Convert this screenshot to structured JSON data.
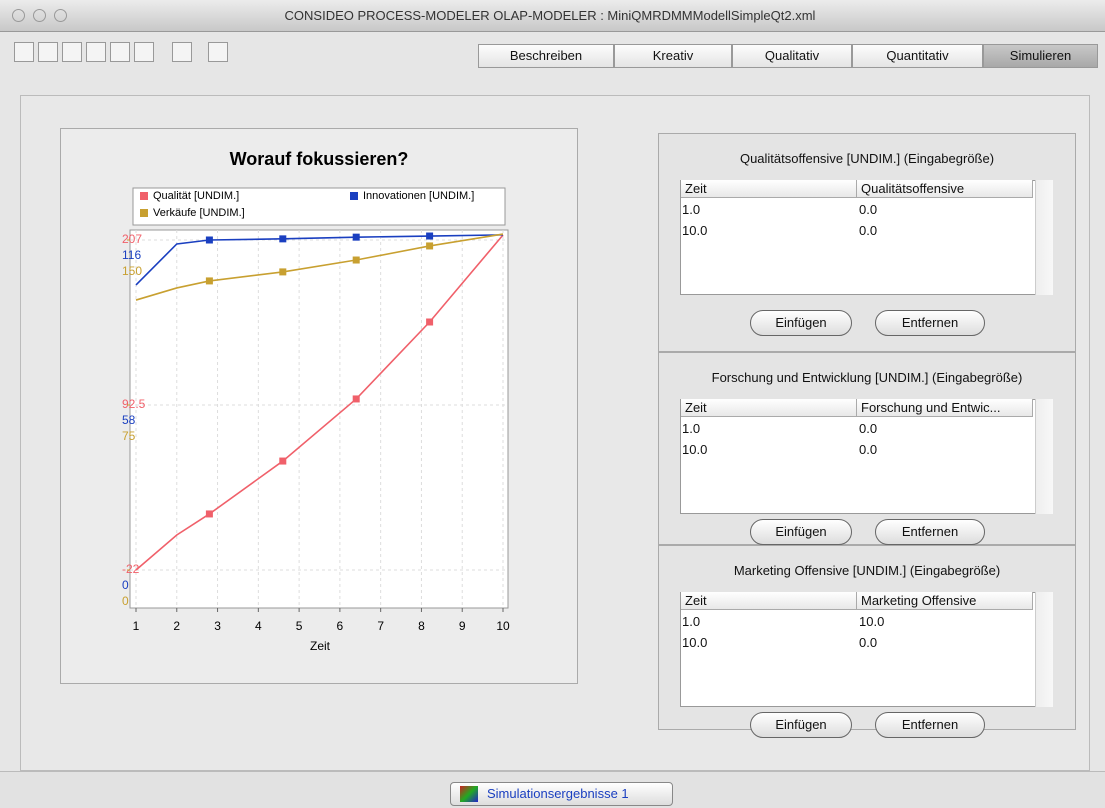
{
  "window": {
    "title": "CONSIDEO PROCESS-MODELER OLAP-MODELER : MiniQMRDMMModellSimpleQt2.xml"
  },
  "tabs": [
    "Beschreiben",
    "Kreativ",
    "Qualitativ",
    "Quantitativ",
    "Simulieren"
  ],
  "selected_tab": "Simulieren",
  "chart_data": {
    "type": "line",
    "title": "Worauf fokussieren?",
    "xlabel": "Zeit",
    "x": [
      1,
      2,
      2.8,
      4.6,
      6.4,
      8.2,
      10
    ],
    "xlim": [
      1,
      10
    ],
    "xticks": [
      1,
      2,
      3,
      4,
      5,
      6,
      7,
      8,
      9,
      10
    ],
    "grid": true,
    "series": [
      {
        "name": "Qualität [UNDIM.]",
        "color": "#f0606a",
        "ylim": [
          -22,
          207
        ],
        "yticks": [
          -22,
          92.5,
          207
        ],
        "values": [
          -22,
          2.3,
          16.9,
          53.6,
          96.7,
          150.1,
          210.5
        ]
      },
      {
        "name": "Innovationen [UNDIM.]",
        "color": "#1a3fc0",
        "ylim": [
          0,
          116
        ],
        "yticks": [
          0,
          58,
          116
        ],
        "values": [
          100.2,
          114.6,
          116,
          116.4,
          117,
          117.4,
          117.8
        ]
      },
      {
        "name": "Verkäufe [UNDIM.]",
        "color": "#c8a030",
        "ylim": [
          0,
          150
        ],
        "yticks": [
          0,
          75,
          150
        ],
        "values": [
          122.7,
          128.2,
          131.4,
          135.5,
          140.9,
          147.3,
          152.7
        ]
      }
    ]
  },
  "panels": [
    {
      "title": "Qualitätsoffensive [UNDIM.]  (Eingabegröße)",
      "columns": [
        "Zeit",
        "Qualitätsoffensive"
      ],
      "rows": [
        [
          "1.0",
          "0.0"
        ],
        [
          "10.0",
          "0.0"
        ]
      ],
      "buttons": [
        "Einfügen",
        "Entfernen"
      ]
    },
    {
      "title": "Forschung und Entwicklung [UNDIM.]  (Eingabegröße)",
      "columns": [
        "Zeit",
        "Forschung und Entwic..."
      ],
      "rows": [
        [
          "1.0",
          "0.0"
        ],
        [
          "10.0",
          "0.0"
        ]
      ],
      "buttons": [
        "Einfügen",
        "Entfernen"
      ]
    },
    {
      "title": "Marketing Offensive [UNDIM.]  (Eingabegröße)",
      "columns": [
        "Zeit",
        "Marketing Offensive"
      ],
      "rows": [
        [
          "1.0",
          "10.0"
        ],
        [
          "10.0",
          "0.0"
        ]
      ],
      "buttons": [
        "Einfügen",
        "Entfernen"
      ]
    }
  ],
  "bottom_tab": "Simulationsergebnisse 1"
}
